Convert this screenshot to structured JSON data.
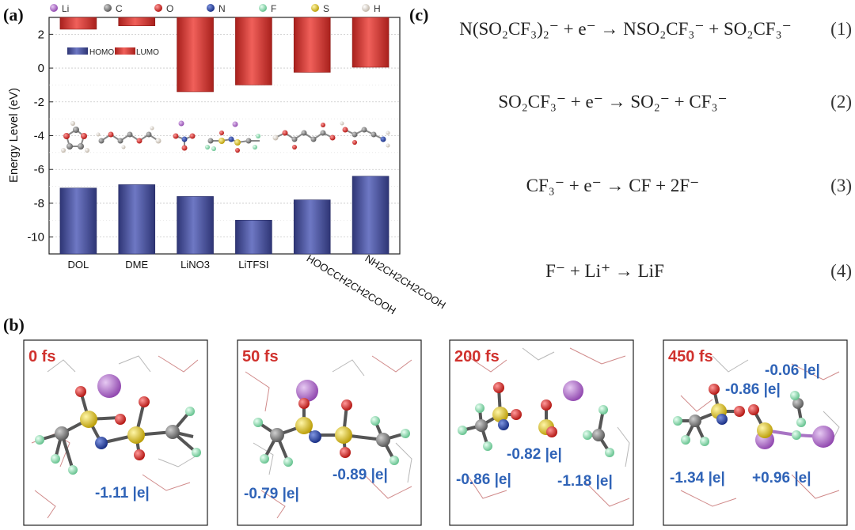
{
  "panels": {
    "a_label": "(a)",
    "b_label": "(b)",
    "c_label": "(c)"
  },
  "element_legend": [
    {
      "symbol": "Li",
      "color": "#9b59b6"
    },
    {
      "symbol": "C",
      "color": "#6e6e6e"
    },
    {
      "symbol": "O",
      "color": "#d62728"
    },
    {
      "symbol": "N",
      "color": "#1f3d99"
    },
    {
      "symbol": "F",
      "color": "#9ee0b8"
    },
    {
      "symbol": "S",
      "color": "#e0c020"
    },
    {
      "symbol": "H",
      "color": "#ece5da"
    }
  ],
  "chart_data": {
    "type": "bar",
    "ylabel": "Energy Level (eV)",
    "ylim": [
      -11,
      3
    ],
    "yticks": [
      "2",
      "0",
      "-2",
      "-4",
      "-6",
      "-8",
      "-10"
    ],
    "categories": [
      "DOL",
      "DME",
      "LiNO3",
      "LiTFSI",
      "HOOCCH2CH2COOH",
      "NH2CH2CH2COOH"
    ],
    "series": [
      {
        "name": "HOMO",
        "color": "#45509a",
        "values": [
          -7.1,
          -6.9,
          -7.6,
          -9.0,
          -7.8,
          -6.4
        ]
      },
      {
        "name": "LUMO",
        "color": "#d9322b",
        "values": [
          2.3,
          2.5,
          -1.4,
          -1.0,
          -0.25,
          0.05
        ]
      }
    ],
    "grid": "dotted horizontal",
    "legend_placement": "top-left"
  },
  "equations": [
    {
      "text": "N(SO₂CF₃)₂⁻ + e⁻ → NSO₂CF₃⁻ + SO₂CF₃⁻",
      "number": "(1)"
    },
    {
      "text": "SO₂CF₃⁻ + e⁻ → SO₂⁻ + CF₃⁻",
      "number": "(2)"
    },
    {
      "text": "CF₃⁻ + e⁻ → CF + 2F⁻",
      "number": "(3)"
    },
    {
      "text": "F⁻ + Li⁺ → LiF",
      "number": "(4)"
    }
  ],
  "snapshots": [
    {
      "time": "0 fs",
      "charges": [
        "-1.11 |e|"
      ]
    },
    {
      "time": "50 fs",
      "charges": [
        "-0.79 |e|",
        "-0.89 |e|"
      ]
    },
    {
      "time": "200 fs",
      "charges": [
        "-0.82 |e|",
        "-0.86 |e|",
        "-1.18 |e|"
      ]
    },
    {
      "time": "450 fs",
      "charges": [
        "-0.06 |e|",
        "-0.86 |e|",
        "-1.34 |e|",
        "+0.96 |e|"
      ]
    }
  ]
}
